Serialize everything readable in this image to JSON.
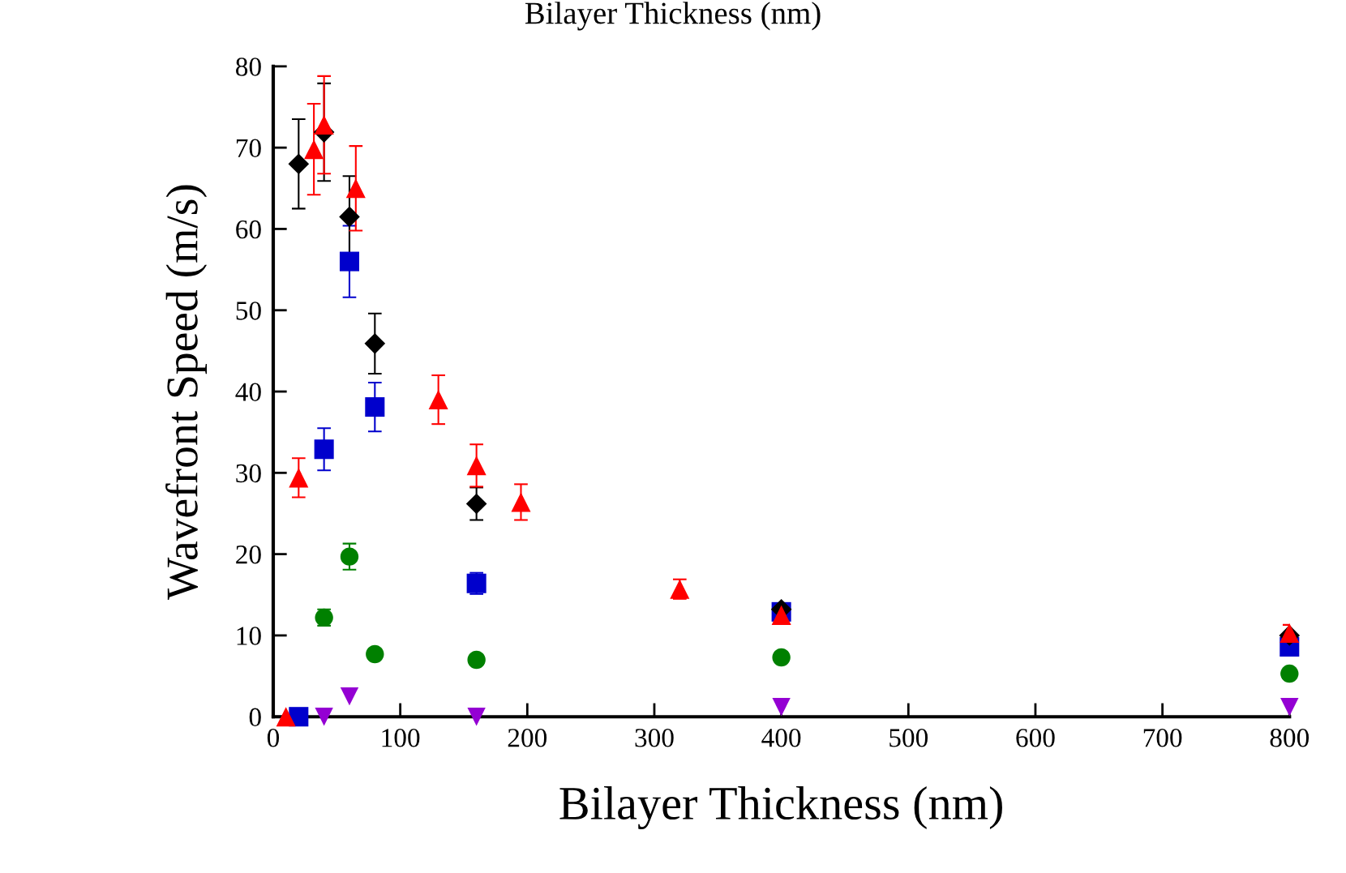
{
  "chart_data": {
    "type": "scatter",
    "title": "Bilayer Thickness (nm)",
    "xlabel": "Bilayer Thickness (nm)",
    "ylabel": "Wavefront Speed (m/s)",
    "xlim": [
      0,
      800
    ],
    "xticks": [
      0,
      100,
      200,
      300,
      400,
      500,
      600,
      700,
      800
    ],
    "ylim": [
      0,
      80
    ],
    "yticks": [
      0,
      10,
      20,
      30,
      40,
      50,
      60,
      70,
      80
    ],
    "grid": false,
    "legend": false,
    "series": [
      {
        "color": "#0000cc",
        "marker": "square",
        "x": [
          20,
          40,
          60,
          80,
          160,
          400,
          800
        ],
        "values": [
          0,
          32.9,
          56,
          38.1,
          16.4,
          12.9,
          8.6
        ],
        "errors": [
          null,
          2.6,
          4.4,
          3,
          1.3,
          null,
          null
        ]
      },
      {
        "color": "#000000",
        "marker": "diamond",
        "x": [
          20,
          40,
          60,
          80,
          160,
          400,
          800
        ],
        "values": [
          68,
          71.9,
          61.5,
          45.9,
          26.2,
          13.2,
          10
        ],
        "errors": [
          5.5,
          6,
          5,
          3.7,
          2,
          null,
          null
        ]
      },
      {
        "color": "#ff0000",
        "marker": "triangle",
        "x": [
          10,
          20,
          32,
          40,
          65,
          130,
          160,
          195,
          320,
          400,
          800
        ],
        "values": [
          0,
          29.4,
          69.8,
          72.8,
          65,
          39,
          30.9,
          26.4,
          15.7,
          12.5,
          10.3
        ],
        "errors": [
          null,
          2.4,
          5.6,
          6,
          5.2,
          3,
          2.6,
          2.2,
          1.2,
          1,
          1
        ]
      },
      {
        "color": "#008000",
        "marker": "circle",
        "x": [
          40,
          60,
          80,
          160,
          400,
          800
        ],
        "values": [
          12.2,
          19.7,
          7.7,
          7,
          7.3,
          5.3
        ],
        "errors": [
          1,
          1.6,
          null,
          null,
          null,
          null
        ]
      },
      {
        "color": "#9400d3",
        "marker": "triangle_down",
        "x": [
          40,
          60,
          160,
          400,
          800
        ],
        "values": [
          0,
          2.5,
          0,
          1.2,
          1.2
        ]
      }
    ]
  }
}
